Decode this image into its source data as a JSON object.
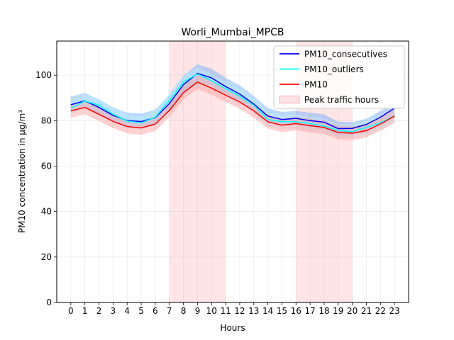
{
  "chart_data": {
    "type": "line",
    "title": "Worli_Mumbai_MPCB",
    "xlabel": "Hours",
    "ylabel": "PM10 concentration in µg/m³",
    "x": [
      0,
      1,
      2,
      3,
      4,
      5,
      6,
      7,
      8,
      9,
      10,
      11,
      12,
      13,
      14,
      15,
      16,
      17,
      18,
      19,
      20,
      21,
      22,
      23
    ],
    "xlim": [
      -1,
      24
    ],
    "ylim": [
      0,
      115
    ],
    "yticks": [
      0,
      20,
      40,
      60,
      80,
      100
    ],
    "grid": true,
    "legend_position": "top-right",
    "peak_hours": [
      [
        7,
        11
      ],
      [
        16,
        20
      ]
    ],
    "series": [
      {
        "name": "PM10_consecutives",
        "color": "#0000ff",
        "band_color": "#6aa8ff",
        "values": [
          87.0,
          88.7,
          85.8,
          82.3,
          80.0,
          79.6,
          81.3,
          87.5,
          95.8,
          100.8,
          98.8,
          95.0,
          91.7,
          87.3,
          82.0,
          80.5,
          81.0,
          80.0,
          79.3,
          76.5,
          76.6,
          78.3,
          81.5,
          85.5
        ],
        "lower": [
          84.0,
          85.7,
          82.8,
          79.3,
          77.0,
          76.6,
          78.3,
          84.5,
          92.5,
          97.5,
          95.5,
          91.7,
          88.5,
          84.3,
          79.0,
          77.8,
          78.3,
          77.2,
          76.3,
          73.5,
          73.6,
          75.3,
          78.5,
          82.3
        ],
        "upper": [
          90.5,
          92.2,
          89.3,
          85.8,
          83.5,
          83.1,
          84.8,
          91.3,
          99.8,
          104.8,
          102.8,
          98.8,
          95.5,
          90.8,
          85.5,
          83.8,
          84.3,
          83.5,
          82.8,
          79.5,
          79.3,
          80.8,
          84.3,
          88.3
        ]
      },
      {
        "name": "PM10_outliers",
        "color": "#00ffff",
        "band_color": "#b8f2ff",
        "values": [
          85.5,
          88.6,
          86.8,
          82.8,
          79.8,
          79.0,
          81.5,
          89.0,
          97.0,
          100.5,
          97.5,
          94.0,
          90.7,
          86.8,
          80.5,
          79.5,
          79.5,
          78.7,
          77.6,
          75.7,
          75.2,
          77.0,
          79.0,
          82.0
        ],
        "lower": [
          82.5,
          85.6,
          83.8,
          79.8,
          76.8,
          76.0,
          78.5,
          86.0,
          94.0,
          97.5,
          94.5,
          91.0,
          87.7,
          83.8,
          77.5,
          76.5,
          76.5,
          75.7,
          74.6,
          72.7,
          72.2,
          74.0,
          76.0,
          79.0
        ],
        "upper": [
          88.5,
          91.6,
          89.8,
          85.8,
          82.8,
          82.0,
          84.5,
          92.0,
          100.0,
          103.5,
          100.5,
          97.0,
          93.7,
          89.8,
          83.5,
          82.5,
          82.5,
          81.7,
          80.6,
          78.7,
          78.2,
          80.0,
          82.0,
          85.0
        ]
      },
      {
        "name": "PM10",
        "color": "#ff0000",
        "band_color": "#ff9999",
        "values": [
          84.3,
          85.8,
          82.8,
          79.7,
          77.4,
          76.8,
          78.5,
          84.5,
          92.3,
          97.0,
          94.3,
          91.2,
          88.2,
          84.3,
          79.5,
          78.0,
          78.7,
          77.8,
          77.0,
          74.8,
          74.5,
          75.6,
          78.5,
          82.0
        ],
        "lower": [
          81.3,
          82.8,
          79.8,
          76.7,
          74.4,
          73.8,
          75.5,
          81.5,
          89.3,
          94.0,
          91.3,
          88.2,
          85.2,
          81.3,
          76.5,
          75.0,
          75.7,
          74.8,
          74.0,
          71.8,
          71.5,
          72.6,
          75.5,
          79.0
        ],
        "upper": [
          87.3,
          88.8,
          85.8,
          82.7,
          80.4,
          79.8,
          81.5,
          87.5,
          95.3,
          100.0,
          97.3,
          94.2,
          91.2,
          87.3,
          82.5,
          81.0,
          81.7,
          80.8,
          80.0,
          77.8,
          77.5,
          78.6,
          81.5,
          85.0
        ]
      }
    ],
    "legend": [
      "PM10_consecutives",
      "PM10_outliers",
      "PM10",
      "Peak traffic hours"
    ]
  }
}
